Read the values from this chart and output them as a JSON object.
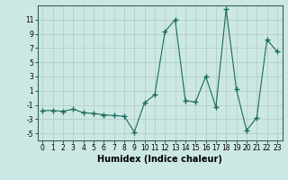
{
  "x": [
    0,
    1,
    2,
    3,
    4,
    5,
    6,
    7,
    8,
    9,
    10,
    11,
    12,
    13,
    14,
    15,
    16,
    17,
    18,
    19,
    20,
    21,
    22,
    23
  ],
  "y": [
    -1.8,
    -1.8,
    -1.9,
    -1.6,
    -2.1,
    -2.2,
    -2.4,
    -2.5,
    -2.6,
    -4.8,
    -0.7,
    0.4,
    9.3,
    11.0,
    -0.4,
    -0.6,
    3.0,
    -1.3,
    12.5,
    1.2,
    -4.6,
    -2.8,
    8.2,
    6.5
  ],
  "line_color": "#1a6b5a",
  "marker": "+",
  "markersize": 4,
  "linewidth": 0.8,
  "xlabel": "Humidex (Indice chaleur)",
  "xlabel_fontsize": 7,
  "xlabel_fontweight": "bold",
  "ylim": [
    -6,
    13
  ],
  "xlim": [
    -0.5,
    23.5
  ],
  "yticks": [
    -5,
    -3,
    -1,
    1,
    3,
    5,
    7,
    9,
    11
  ],
  "xticks": [
    0,
    1,
    2,
    3,
    4,
    5,
    6,
    7,
    8,
    9,
    10,
    11,
    12,
    13,
    14,
    15,
    16,
    17,
    18,
    19,
    20,
    21,
    22,
    23
  ],
  "bg_color": "#cce8e5",
  "grid_color": "#b0c8c4",
  "tick_fontsize": 5.5,
  "spine_color": "#336655"
}
